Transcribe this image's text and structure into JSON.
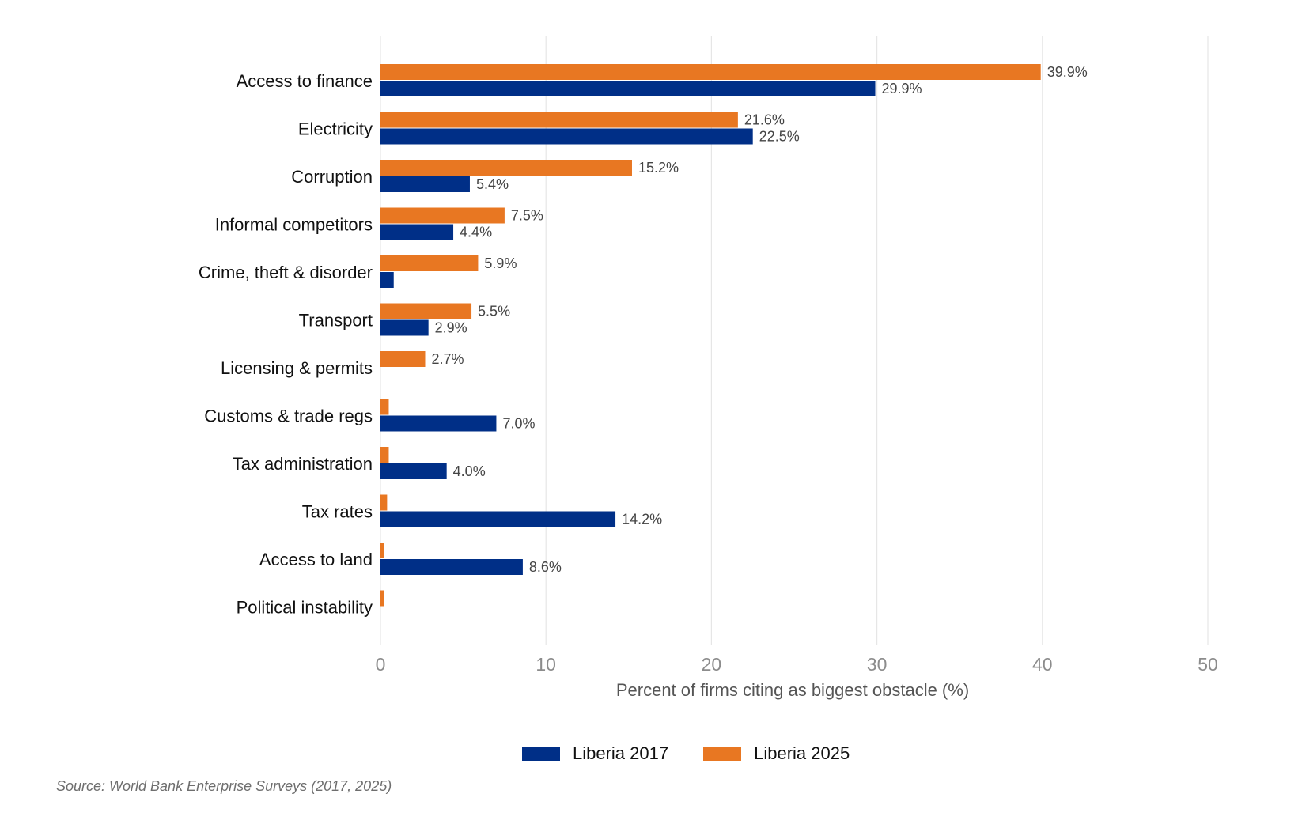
{
  "chart_data": {
    "type": "bar",
    "orientation": "horizontal",
    "categories": [
      "Access to finance",
      "Electricity",
      "Corruption",
      "Informal competitors",
      "Crime, theft & disorder",
      "Transport",
      "Licensing & permits",
      "Customs & trade regs",
      "Tax administration",
      "Tax rates",
      "Access to land",
      "Political instability"
    ],
    "series": [
      {
        "name": "Liberia 2025",
        "color": "#E87722",
        "values": [
          39.9,
          21.6,
          15.2,
          7.5,
          5.9,
          5.5,
          2.7,
          0.5,
          0.5,
          0.4,
          0.2,
          0.2
        ],
        "labels": [
          "39.9%",
          "21.6%",
          "15.2%",
          "7.5%",
          "5.9%",
          "5.5%",
          "2.7%",
          "",
          "",
          "",
          "",
          ""
        ]
      },
      {
        "name": "Liberia 2017",
        "color": "#002F87",
        "values": [
          29.9,
          22.5,
          5.4,
          4.4,
          0.8,
          2.9,
          0,
          7.0,
          4.0,
          14.2,
          8.6,
          0
        ],
        "labels": [
          "29.9%",
          "22.5%",
          "5.4%",
          "4.4%",
          "",
          "2.9%",
          "",
          "7.0%",
          "4.0%",
          "14.2%",
          "8.6%",
          ""
        ]
      }
    ],
    "xlabel": "Percent of firms citing as biggest obstacle (%)",
    "ylabel": "",
    "xlim": [
      0,
      50
    ],
    "xticks": [
      "0",
      "10",
      "20",
      "30",
      "40",
      "50"
    ],
    "grid": true,
    "legend_position": "bottom",
    "legend": [
      "Liberia 2017",
      "Liberia 2025"
    ]
  },
  "legend": {
    "items": [
      {
        "label": "Liberia 2017",
        "color": "#002F87"
      },
      {
        "label": "Liberia 2025",
        "color": "#E87722"
      }
    ]
  },
  "source": "Source: World Bank Enterprise Surveys (2017, 2025)"
}
